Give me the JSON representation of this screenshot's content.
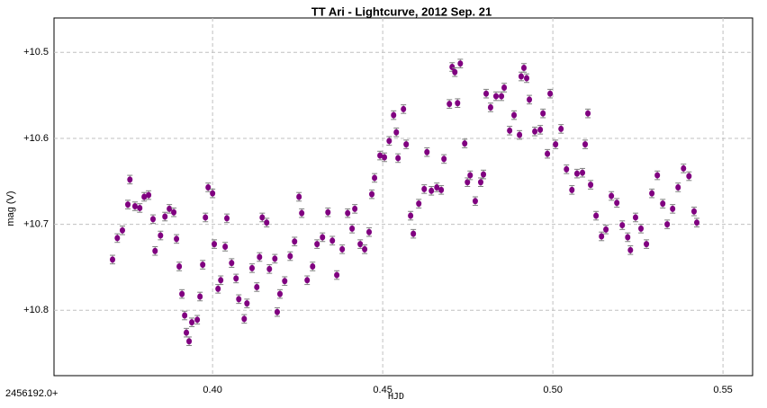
{
  "chart_data": {
    "type": "scatter",
    "title": "TT Ari  - Lightcurve, 2012 Sep. 21",
    "x_offset_label": "2456192.0+",
    "xlabel": "HJD",
    "ylabel": "mag (V)",
    "color": "#800080",
    "error_color": "#808080",
    "yerr": 0.005,
    "xlim": [
      0.3534,
      0.5587
    ],
    "ylim": [
      10.876,
      10.46
    ],
    "grid": true,
    "xticks": [
      {
        "value": 0.4,
        "label": "0.40"
      },
      {
        "value": 0.45,
        "label": "0.45"
      },
      {
        "value": 0.5,
        "label": "0.50"
      },
      {
        "value": 0.55,
        "label": "0.55"
      }
    ],
    "yticks": [
      {
        "value": 10.5,
        "label": "+10.5"
      },
      {
        "value": 10.6,
        "label": "+10.6"
      },
      {
        "value": 10.7,
        "label": "+10.7"
      },
      {
        "value": 10.8,
        "label": "+10.8"
      }
    ],
    "x": [
      0.3706,
      0.372,
      0.3735,
      0.3751,
      0.3757,
      0.3772,
      0.3786,
      0.3799,
      0.3812,
      0.3825,
      0.3831,
      0.3847,
      0.386,
      0.3873,
      0.3886,
      0.3894,
      0.3902,
      0.391,
      0.3918,
      0.3923,
      0.3931,
      0.3939,
      0.3955,
      0.3963,
      0.3971,
      0.3979,
      0.3987,
      0.4,
      0.4005,
      0.4016,
      0.4024,
      0.4037,
      0.4042,
      0.4056,
      0.4069,
      0.4077,
      0.4093,
      0.4101,
      0.4116,
      0.413,
      0.4138,
      0.4146,
      0.4159,
      0.4167,
      0.4183,
      0.419,
      0.4198,
      0.4212,
      0.4228,
      0.4241,
      0.4254,
      0.4262,
      0.4278,
      0.4294,
      0.4307,
      0.4323,
      0.4339,
      0.4352,
      0.4365,
      0.4381,
      0.4397,
      0.441,
      0.4418,
      0.4434,
      0.4447,
      0.446,
      0.4468,
      0.4476,
      0.4492,
      0.4505,
      0.4519,
      0.4532,
      0.454,
      0.4545,
      0.4561,
      0.4569,
      0.4582,
      0.459,
      0.4606,
      0.4622,
      0.463,
      0.4643,
      0.4659,
      0.4672,
      0.468,
      0.4696,
      0.4704,
      0.4712,
      0.472,
      0.4728,
      0.4741,
      0.4749,
      0.4757,
      0.4772,
      0.4788,
      0.4796,
      0.4804,
      0.4817,
      0.4833,
      0.4849,
      0.4857,
      0.4873,
      0.4886,
      0.4902,
      0.4907,
      0.4915,
      0.4923,
      0.4931,
      0.4947,
      0.4963,
      0.4971,
      0.4984,
      0.4992,
      0.5008,
      0.5024,
      0.504,
      0.5056,
      0.5071,
      0.5087,
      0.5095,
      0.5103,
      0.5111,
      0.5127,
      0.5143,
      0.5156,
      0.5172,
      0.5188,
      0.5204,
      0.522,
      0.5228,
      0.5243,
      0.5259,
      0.5275,
      0.5291,
      0.5307,
      0.5323,
      0.5336,
      0.5352,
      0.5368,
      0.5384,
      0.54,
      0.5415,
      0.5423
    ],
    "values": [
      10.741,
      10.716,
      10.707,
      10.677,
      10.648,
      10.679,
      10.681,
      10.668,
      10.666,
      10.694,
      10.731,
      10.713,
      10.691,
      10.682,
      10.686,
      10.717,
      10.749,
      10.781,
      10.806,
      10.826,
      10.836,
      10.814,
      10.811,
      10.784,
      10.747,
      10.692,
      10.657,
      10.664,
      10.723,
      10.775,
      10.765,
      10.726,
      10.693,
      10.745,
      10.763,
      10.787,
      10.81,
      10.792,
      10.751,
      10.773,
      10.738,
      10.692,
      10.698,
      10.752,
      10.74,
      10.802,
      10.781,
      10.766,
      10.737,
      10.72,
      10.668,
      10.687,
      10.765,
      10.749,
      10.723,
      10.715,
      10.686,
      10.719,
      10.759,
      10.729,
      10.687,
      10.705,
      10.682,
      10.723,
      10.729,
      10.709,
      10.665,
      10.646,
      10.62,
      10.622,
      10.603,
      10.573,
      10.593,
      10.623,
      10.566,
      10.607,
      10.69,
      10.711,
      10.676,
      10.659,
      10.616,
      10.661,
      10.657,
      10.66,
      10.624,
      10.56,
      10.517,
      10.523,
      10.559,
      10.513,
      10.606,
      10.651,
      10.643,
      10.673,
      10.651,
      10.642,
      10.548,
      10.564,
      10.551,
      10.551,
      10.541,
      10.591,
      10.573,
      10.596,
      10.528,
      10.518,
      10.53,
      10.555,
      10.592,
      10.59,
      10.571,
      10.618,
      10.548,
      10.607,
      10.589,
      10.636,
      10.66,
      10.641,
      10.64,
      10.607,
      10.571,
      10.654,
      10.69,
      10.714,
      10.706,
      10.667,
      10.675,
      10.701,
      10.715,
      10.73,
      10.692,
      10.705,
      10.723,
      10.664,
      10.643,
      10.676,
      10.7,
      10.682,
      10.657,
      10.635,
      10.644,
      10.685,
      10.698
    ]
  }
}
